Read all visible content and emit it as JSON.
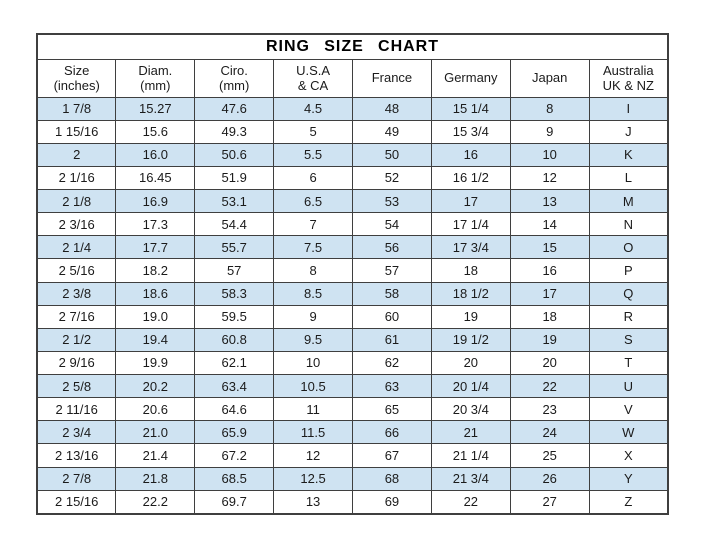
{
  "chart_data": {
    "type": "table",
    "title": "RING SIZE CHART",
    "columns": [
      [
        "Size",
        "(inches)"
      ],
      [
        "Diam.",
        "(mm)"
      ],
      [
        "Ciro.",
        "(mm)"
      ],
      [
        "U.S.A",
        "& CA"
      ],
      [
        "France"
      ],
      [
        "Germany"
      ],
      [
        "Japan"
      ],
      [
        "Australia",
        "UK & NZ"
      ]
    ],
    "rows": [
      [
        "1 7/8",
        "15.27",
        "47.6",
        "4.5",
        "48",
        "15 1/4",
        "8",
        "I"
      ],
      [
        "1 15/16",
        "15.6",
        "49.3",
        "5",
        "49",
        "15 3/4",
        "9",
        "J"
      ],
      [
        "2",
        "16.0",
        "50.6",
        "5.5",
        "50",
        "16",
        "10",
        "K"
      ],
      [
        "2 1/16",
        "16.45",
        "51.9",
        "6",
        "52",
        "16 1/2",
        "12",
        "L"
      ],
      [
        "2 1/8",
        "16.9",
        "53.1",
        "6.5",
        "53",
        "17",
        "13",
        "M"
      ],
      [
        "2 3/16",
        "17.3",
        "54.4",
        "7",
        "54",
        "17 1/4",
        "14",
        "N"
      ],
      [
        "2 1/4",
        "17.7",
        "55.7",
        "7.5",
        "56",
        "17 3/4",
        "15",
        "O"
      ],
      [
        "2 5/16",
        "18.2",
        "57",
        "8",
        "57",
        "18",
        "16",
        "P"
      ],
      [
        "2 3/8",
        "18.6",
        "58.3",
        "8.5",
        "58",
        "18 1/2",
        "17",
        "Q"
      ],
      [
        "2 7/16",
        "19.0",
        "59.5",
        "9",
        "60",
        "19",
        "18",
        "R"
      ],
      [
        "2 1/2",
        "19.4",
        "60.8",
        "9.5",
        "61",
        "19 1/2",
        "19",
        "S"
      ],
      [
        "2 9/16",
        "19.9",
        "62.1",
        "10",
        "62",
        "20",
        "20",
        "T"
      ],
      [
        "2 5/8",
        "20.2",
        "63.4",
        "10.5",
        "63",
        "20 1/4",
        "22",
        "U"
      ],
      [
        "2 11/16",
        "20.6",
        "64.6",
        "11",
        "65",
        "20 3/4",
        "23",
        "V"
      ],
      [
        "2 3/4",
        "21.0",
        "65.9",
        "11.5",
        "66",
        "21",
        "24",
        "W"
      ],
      [
        "2 13/16",
        "21.4",
        "67.2",
        "12",
        "67",
        "21 1/4",
        "25",
        "X"
      ],
      [
        "2 7/8",
        "21.8",
        "68.5",
        "12.5",
        "68",
        "21 3/4",
        "26",
        "Y"
      ],
      [
        "2 15/16",
        "22.2",
        "69.7",
        "13",
        "69",
        "22",
        "27",
        "Z"
      ]
    ],
    "stripe_pattern": "odd rows (1st, 3rd, 5th ...) shaded light blue",
    "colors": {
      "stripe_blue": "#cfe3f2",
      "border": "#3f3f3f",
      "text": "#1b1b1b",
      "background": "#ffffff"
    },
    "layout_hints": {
      "grid": "on",
      "column_count": 8,
      "row_count": 18
    }
  }
}
